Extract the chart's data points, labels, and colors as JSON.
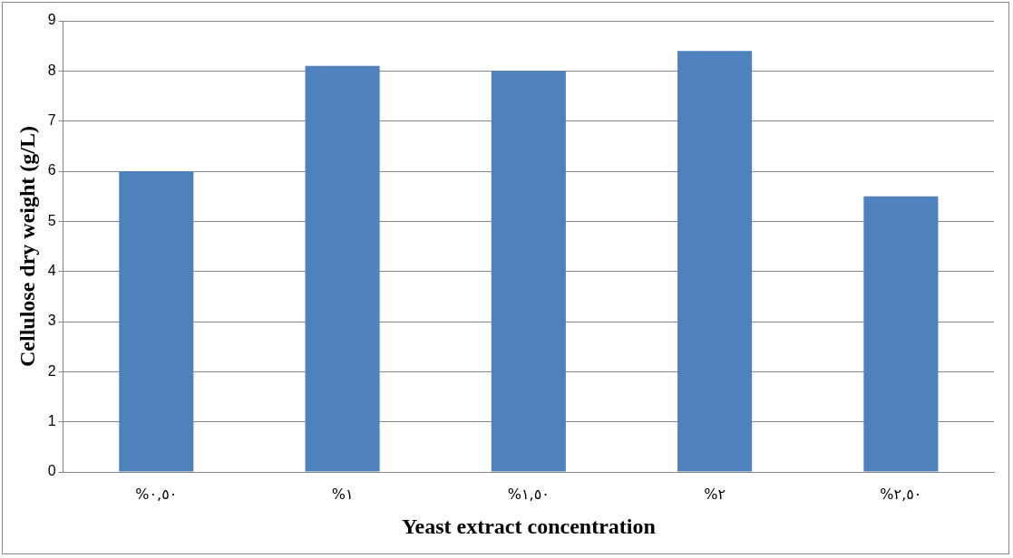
{
  "chart_data": {
    "type": "bar",
    "xlabel": "Yeast extract concentration",
    "ylabel": "Cellulose dry weight (g/L)",
    "categories": [
      "%٠,٥٠",
      "%١",
      "%١,٥٠",
      "%٢",
      "%٢,٥٠"
    ],
    "values": [
      6,
      8.1,
      8,
      8.4,
      5.5
    ],
    "color": "#4f81bd",
    "ylim": [
      0,
      9
    ],
    "yticks": [
      0,
      1,
      2,
      3,
      4,
      5,
      6,
      7,
      8,
      9
    ],
    "grid": "y",
    "legend": false
  }
}
